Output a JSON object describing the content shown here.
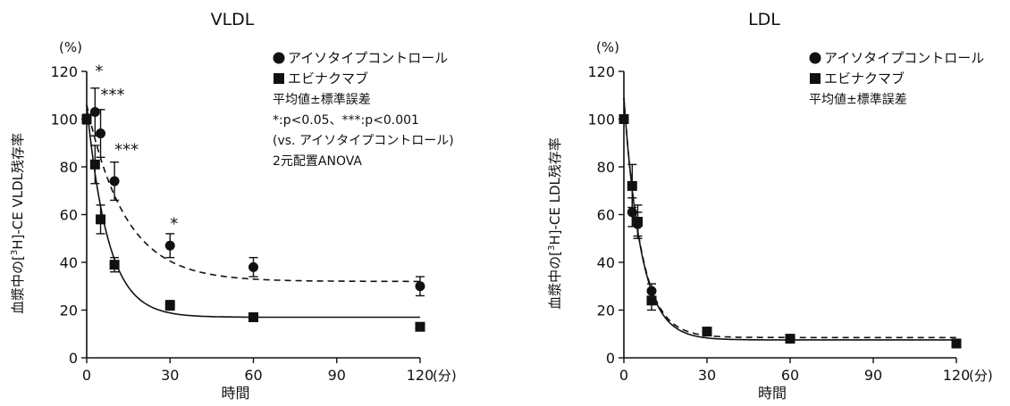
{
  "chart_data": [
    {
      "type": "scatter",
      "title": "VLDL",
      "xlabel": "時間",
      "x_unit": "(分)",
      "ylabel": "血漿中の[3H]-CE VLDL残存率",
      "y_unit": "(%)",
      "xlim": [
        0,
        120
      ],
      "ylim": [
        0,
        120
      ],
      "x_ticks": [
        0,
        30,
        60,
        90,
        120
      ],
      "y_ticks": [
        0,
        20,
        40,
        60,
        80,
        100,
        120
      ],
      "series": [
        {
          "name": "アイソタイプコントロール",
          "marker": "circle",
          "line": "dashed",
          "x": [
            0,
            3,
            5,
            10,
            30,
            60,
            120
          ],
          "y": [
            100,
            103,
            94,
            74,
            47,
            38,
            30
          ],
          "err": [
            2,
            10,
            10,
            8,
            5,
            4,
            4
          ]
        },
        {
          "name": "エビナクマブ",
          "marker": "square",
          "line": "solid",
          "x": [
            0,
            3,
            5,
            10,
            30,
            60,
            120
          ],
          "y": [
            100,
            81,
            58,
            39,
            22,
            17,
            13
          ],
          "err": [
            2,
            8,
            6,
            3,
            2,
            1,
            1
          ]
        }
      ],
      "fits": [
        {
          "series": "アイソタイプコントロール",
          "y0": 106,
          "plateau": 32,
          "k": 0.072
        },
        {
          "series": "エビナクマブ",
          "y0": 106,
          "plateau": 17,
          "k": 0.13
        }
      ],
      "annotations": [
        {
          "x": 3,
          "y": 118,
          "text": "*"
        },
        {
          "x": 5,
          "y": 108,
          "text": "***"
        },
        {
          "x": 10,
          "y": 85,
          "text": "***"
        },
        {
          "x": 30,
          "y": 54,
          "text": "*"
        }
      ],
      "legend_notes": [
        "平均値±標準誤差",
        "*:p<0.05、***:p<0.001",
        "(vs. アイソタイプコントロール)",
        "2元配置ANOVA"
      ]
    },
    {
      "type": "scatter",
      "title": "LDL",
      "xlabel": "時間",
      "x_unit": "(分)",
      "ylabel": "血漿中の[3H]-CE LDL残存率",
      "y_unit": "(%)",
      "xlim": [
        0,
        120
      ],
      "ylim": [
        0,
        120
      ],
      "x_ticks": [
        0,
        30,
        60,
        90,
        120
      ],
      "y_ticks": [
        0,
        20,
        40,
        60,
        80,
        100,
        120
      ],
      "series": [
        {
          "name": "アイソタイプコントロール",
          "marker": "circle",
          "line": "dashed",
          "x": [
            0,
            3,
            5,
            10,
            30,
            60,
            120
          ],
          "y": [
            100,
            61,
            56,
            28,
            11,
            8,
            6
          ],
          "err": [
            1,
            6,
            5,
            3,
            1,
            1,
            1
          ]
        },
        {
          "name": "エビナクマブ",
          "marker": "square",
          "line": "solid",
          "x": [
            0,
            3,
            5,
            10,
            30,
            60,
            120
          ],
          "y": [
            100,
            72,
            57,
            24,
            11,
            8,
            6
          ],
          "err": [
            1,
            9,
            7,
            4,
            1,
            1,
            1
          ]
        }
      ],
      "fits": [
        {
          "series": "アイソタイプコントロール",
          "y0": 109,
          "plateau": 8.5,
          "k": 0.16
        },
        {
          "series": "エビナクマブ",
          "y0": 109,
          "plateau": 7.5,
          "k": 0.16
        }
      ],
      "annotations": [],
      "legend_notes": [
        "平均値±標準誤差"
      ]
    }
  ]
}
